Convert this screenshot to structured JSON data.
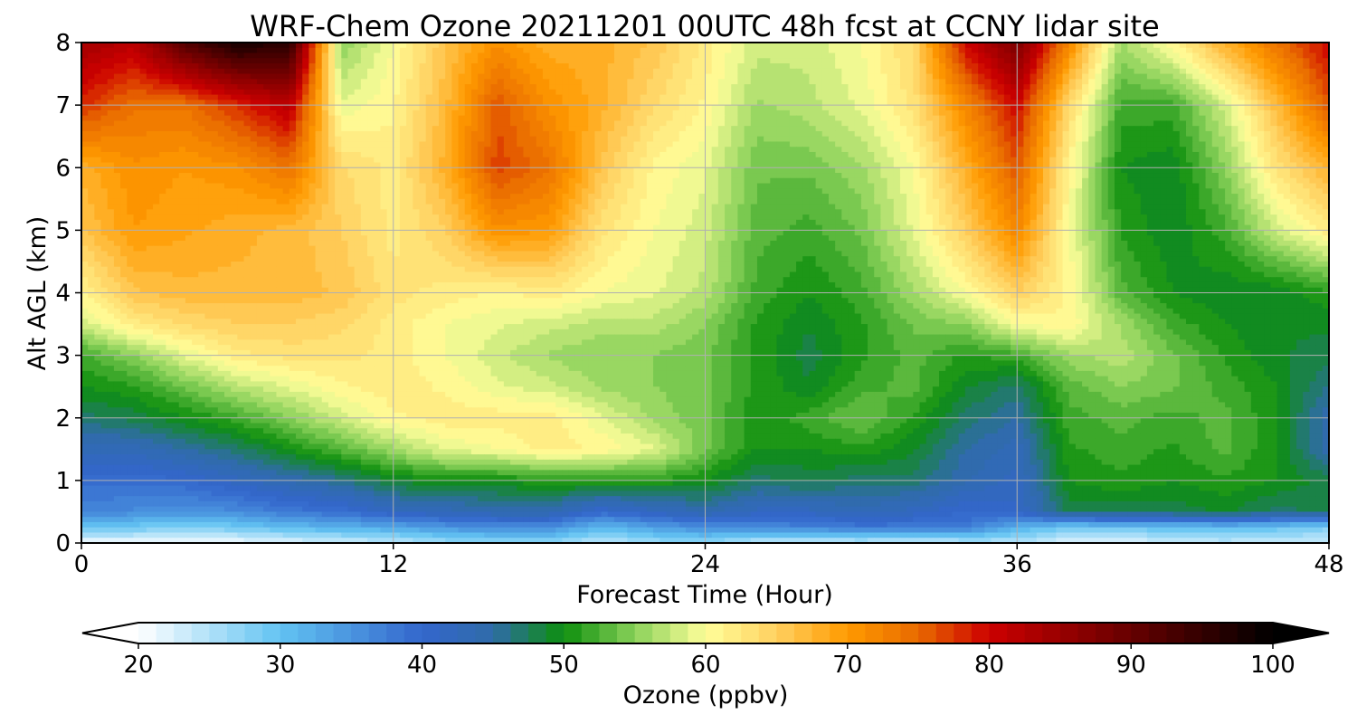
{
  "chart_data": {
    "type": "heatmap",
    "title": "WRF-Chem Ozone  20211201 00UTC 48h fcst at CCNY lidar site",
    "xlabel": "Forecast Time (Hour)",
    "ylabel": "Alt AGL (km)",
    "xlim": [
      0,
      48
    ],
    "ylim": [
      0,
      8
    ],
    "x_ticks": [
      "0",
      "12",
      "24",
      "36",
      "48"
    ],
    "y_ticks": [
      "0",
      "1",
      "2",
      "3",
      "4",
      "5",
      "6",
      "7",
      "8"
    ],
    "grid": true,
    "x": [
      0,
      2,
      4,
      6,
      8,
      10,
      12,
      14,
      16,
      18,
      20,
      22,
      24,
      26,
      28,
      30,
      32,
      34,
      36,
      38,
      40,
      42,
      44,
      46,
      48
    ],
    "y": [
      0,
      0.25,
      0.5,
      1,
      1.5,
      2,
      2.5,
      3,
      3.5,
      4,
      5,
      6,
      7,
      8
    ],
    "z": [
      [
        21,
        21,
        21,
        21,
        22,
        23,
        24,
        26,
        27,
        27,
        24,
        26,
        27,
        24,
        23,
        24,
        23,
        24,
        25,
        22,
        22,
        23,
        24,
        23,
        24
      ],
      [
        30,
        29,
        28,
        29,
        31,
        32,
        33,
        35,
        36,
        36,
        31,
        34,
        36,
        36,
        37,
        38,
        38,
        38,
        32,
        29,
        30,
        30,
        31,
        30,
        28
      ],
      [
        37,
        36,
        35,
        36,
        38,
        39,
        42,
        43,
        44,
        44,
        40,
        42,
        44,
        42,
        42,
        43,
        42,
        40,
        41,
        48,
        48,
        48,
        49,
        47,
        48
      ],
      [
        39,
        39,
        40,
        42,
        44,
        46,
        49,
        50,
        50,
        51,
        51,
        51,
        50,
        47,
        48,
        47,
        47,
        44,
        42,
        50,
        51,
        50,
        51,
        50,
        48
      ],
      [
        43,
        43,
        45,
        47,
        50,
        53,
        56,
        59,
        60,
        62,
        61,
        59,
        54,
        50,
        50,
        51,
        49,
        45,
        43,
        51,
        52,
        51,
        53,
        50,
        44
      ],
      [
        47,
        48,
        50,
        52,
        55,
        58,
        61,
        62,
        62,
        62,
        59,
        56,
        54,
        50,
        52,
        54,
        51,
        47,
        45,
        52,
        53,
        52,
        53,
        50,
        44
      ],
      [
        50,
        51,
        54,
        57,
        59,
        61,
        62,
        61,
        59,
        58,
        56,
        55,
        54,
        51,
        49,
        52,
        53,
        49,
        47,
        53,
        55,
        54,
        52,
        50,
        46
      ],
      [
        52,
        55,
        59,
        62,
        63,
        63,
        62,
        60,
        58,
        56,
        55,
        55,
        54,
        51,
        48,
        51,
        53,
        51,
        52,
        56,
        57,
        54,
        51,
        49,
        48
      ],
      [
        58,
        62,
        64,
        65,
        65,
        64,
        62,
        60,
        59,
        58,
        57,
        57,
        55,
        51,
        49,
        51,
        54,
        55,
        60,
        61,
        56,
        52,
        50,
        49,
        49
      ],
      [
        61,
        66,
        67,
        67,
        67,
        66,
        63,
        62,
        61,
        62,
        60,
        59,
        57,
        52,
        50,
        52,
        56,
        60,
        65,
        61,
        53,
        50,
        49,
        49,
        51
      ],
      [
        66,
        70,
        69,
        68,
        67,
        65,
        62,
        65,
        71,
        70,
        63,
        60,
        58,
        53,
        52,
        54,
        59,
        65,
        72,
        60,
        51,
        49,
        52,
        58,
        62
      ],
      [
        68,
        71,
        70,
        71,
        74,
        64,
        62,
        68,
        77,
        74,
        66,
        61,
        59,
        54,
        54,
        56,
        60,
        68,
        76,
        61,
        50,
        49,
        55,
        63,
        68
      ],
      [
        78,
        74,
        74,
        78,
        82,
        59,
        61,
        67,
        76,
        71,
        68,
        64,
        61,
        56,
        57,
        59,
        63,
        72,
        80,
        64,
        52,
        52,
        58,
        67,
        76
      ],
      [
        84,
        82,
        92,
        98,
        96,
        55,
        60,
        66,
        71,
        68,
        68,
        66,
        62,
        58,
        58,
        60,
        64,
        80,
        88,
        72,
        56,
        61,
        68,
        74,
        80
      ]
    ],
    "colorbar": {
      "label": "Ozone  (ppbv)",
      "min": 20,
      "max": 100,
      "ticks": [
        "20",
        "30",
        "40",
        "50",
        "60",
        "70",
        "80",
        "90",
        "100"
      ],
      "extend": "both",
      "orientation": "horizontal",
      "placement": "bottom",
      "colormap_stops": [
        [
          20,
          "#ffffff"
        ],
        [
          30,
          "#62c3f2"
        ],
        [
          40,
          "#3366cc"
        ],
        [
          45,
          "#2f6ca8"
        ],
        [
          50,
          "#0d8f0d"
        ],
        [
          55,
          "#8ad15a"
        ],
        [
          60,
          "#ffff9a"
        ],
        [
          65,
          "#ffd060"
        ],
        [
          70,
          "#ff9a00"
        ],
        [
          75,
          "#e86a00"
        ],
        [
          80,
          "#cc0000"
        ],
        [
          90,
          "#660000"
        ],
        [
          100,
          "#000000"
        ]
      ],
      "over_color": "#000000",
      "under_color": "#ffffff"
    }
  }
}
